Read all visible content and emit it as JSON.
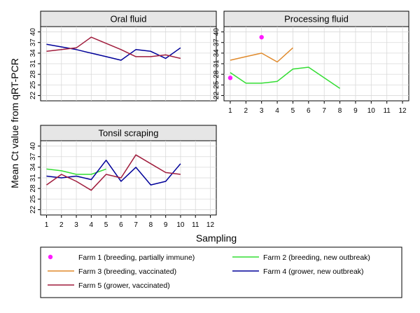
{
  "chart_data": {
    "type": "line",
    "xlabel": "Sampling",
    "ylabel": "Mean Ct value from qRT-PCR",
    "x_ticks": [
      1,
      2,
      3,
      4,
      5,
      6,
      7,
      8,
      9,
      10,
      11,
      12
    ],
    "y_ticks": [
      22,
      25,
      28,
      31,
      34,
      37,
      40
    ],
    "xlim": [
      0.6,
      12.4
    ],
    "ylim": [
      20.5,
      41.5
    ],
    "grid": true,
    "legend_position": "bottom",
    "colors": {
      "farm1": "#ff1aff",
      "farm2": "#33dd33",
      "farm3": "#e08a2c",
      "farm4": "#000099",
      "farm5": "#a01c3c",
      "grid": "#d9d9d9",
      "strip_bg": "#e6e6e6"
    },
    "panels": [
      {
        "title": "Oral fluid",
        "series": [
          {
            "name": "Farm 4 (grower, new outbreak)",
            "key": "farm4",
            "x": [
              1,
              3,
              4,
              5,
              6,
              7,
              8,
              9,
              10
            ],
            "y": [
              36.5,
              35.0,
              34.0,
              33.0,
              32.0,
              35.0,
              34.5,
              32.5,
              35.5
            ]
          },
          {
            "name": "Farm 5 (grower, vaccinated)",
            "key": "farm5",
            "x": [
              1,
              3,
              4,
              6,
              7,
              8,
              9,
              10
            ],
            "y": [
              34.5,
              35.5,
              38.5,
              35.0,
              33.0,
              33.0,
              33.5,
              32.5
            ]
          }
        ]
      },
      {
        "title": "Processing fluid",
        "series": [
          {
            "name": "Farm 1 (breeding, partially immune)",
            "key": "farm1",
            "x": [
              1,
              3
            ],
            "y": [
              27.0,
              38.5
            ],
            "marker_only": true
          },
          {
            "name": "Farm 3 (breeding, vaccinated)",
            "key": "farm3",
            "x": [
              1,
              2,
              3,
              4,
              5
            ],
            "y": [
              32.0,
              33.0,
              34.0,
              31.5,
              35.5
            ]
          },
          {
            "name": "Farm 2 (breeding, new outbreak)",
            "key": "farm2",
            "x": [
              1,
              2,
              3,
              4,
              5,
              6,
              8
            ],
            "y": [
              28.5,
              25.5,
              25.5,
              26.0,
              29.5,
              30.0,
              24.0
            ]
          }
        ]
      },
      {
        "title": "Tonsil scraping",
        "series": [
          {
            "name": "Farm 2 (breeding, new outbreak)",
            "key": "farm2",
            "x": [
              1,
              2,
              3,
              4,
              5
            ],
            "y": [
              33.5,
              33.0,
              32.0,
              32.0,
              33.5
            ]
          },
          {
            "name": "Farm 4 (grower, new outbreak)",
            "key": "farm4",
            "x": [
              1,
              2,
              3,
              4,
              5,
              6,
              7,
              8,
              9,
              10
            ],
            "y": [
              31.5,
              31.0,
              31.5,
              30.5,
              36.0,
              30.0,
              34.0,
              29.0,
              30.0,
              35.0
            ]
          },
          {
            "name": "Farm 5 (grower, vaccinated)",
            "key": "farm5",
            "x": [
              1,
              2,
              3,
              4,
              5,
              6,
              7,
              8,
              9,
              10
            ],
            "y": [
              29.0,
              32.0,
              30.0,
              27.5,
              32.0,
              31.0,
              37.5,
              35.0,
              32.5,
              32.0
            ]
          }
        ]
      }
    ],
    "legend": [
      {
        "label": "Farm 1 (breeding, partially immune)",
        "key": "farm1",
        "kind": "marker"
      },
      {
        "label": "Farm 2 (breeding, new outbreak)",
        "key": "farm2",
        "kind": "line"
      },
      {
        "label": "Farm 3 (breeding, vaccinated)",
        "key": "farm3",
        "kind": "line"
      },
      {
        "label": "Farm 4 (grower, new outbreak)",
        "key": "farm4",
        "kind": "line"
      },
      {
        "label": "Farm 5 (grower, vaccinated)",
        "key": "farm5",
        "kind": "line"
      }
    ]
  }
}
